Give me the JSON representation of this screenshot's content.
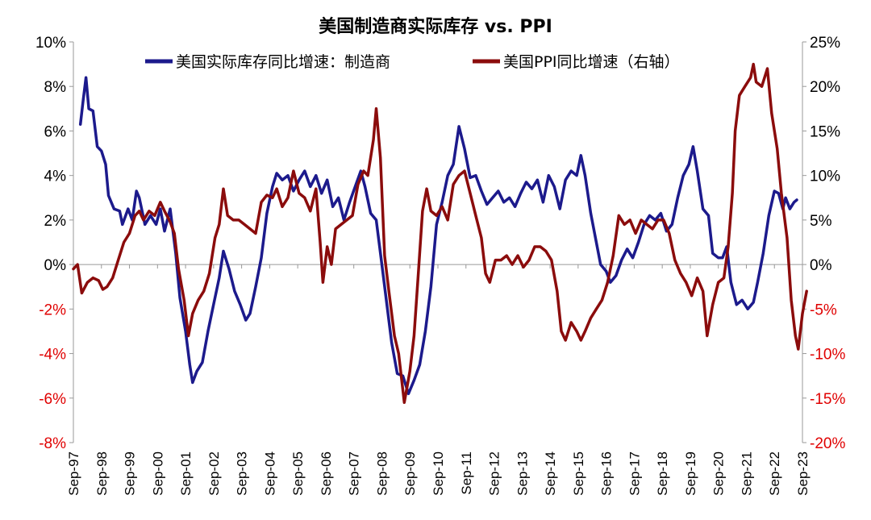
{
  "chart_data": {
    "type": "line",
    "title": "美国制造商实际库存 vs. PPI",
    "x_tick_labels": [
      "Sep-97",
      "Sep-98",
      "Sep-99",
      "Sep-00",
      "Sep-01",
      "Sep-02",
      "Sep-03",
      "Sep-04",
      "Sep-05",
      "Sep-06",
      "Sep-07",
      "Sep-08",
      "Sep-09",
      "Sep-10",
      "Sep-11",
      "Sep-12",
      "Sep-13",
      "Sep-14",
      "Sep-15",
      "Sep-16",
      "Sep-17",
      "Sep-18",
      "Sep-19",
      "Sep-20",
      "Sep-21",
      "Sep-22",
      "Sep-23"
    ],
    "left_axis": {
      "ylim": [
        -8,
        10
      ],
      "ticks": [
        10,
        8,
        6,
        4,
        2,
        0,
        -2,
        -4,
        -6,
        -8
      ],
      "tick_labels": [
        "10%",
        "8%",
        "6%",
        "4%",
        "2%",
        "0%",
        "-2%",
        "-4%",
        "-6%",
        "-8%"
      ],
      "positive_color": "#000000",
      "negative_color": "#e00000"
    },
    "right_axis": {
      "ylim": [
        -20,
        25
      ],
      "ticks": [
        25,
        20,
        15,
        10,
        5,
        0,
        -5,
        -10,
        -15,
        -20
      ],
      "tick_labels": [
        "25%",
        "20%",
        "15%",
        "10%",
        "5%",
        "0%",
        "-5%",
        "-10%",
        "-15%",
        "-20%"
      ],
      "positive_color": "#000000",
      "negative_color": "#e00000"
    },
    "legend_position": "top-center",
    "grid": false,
    "series": [
      {
        "name": "美国实际库存同比增速：制造商",
        "axis": "left",
        "color": "#1c1a8c",
        "points": [
          [
            1998.0,
            6.3
          ],
          [
            1998.1,
            7.4
          ],
          [
            1998.2,
            8.4
          ],
          [
            1998.3,
            7.0
          ],
          [
            1998.45,
            6.9
          ],
          [
            1998.6,
            5.3
          ],
          [
            1998.75,
            5.1
          ],
          [
            1998.9,
            4.5
          ],
          [
            1999.0,
            3.1
          ],
          [
            1999.2,
            2.5
          ],
          [
            1999.4,
            2.4
          ],
          [
            1999.5,
            1.8
          ],
          [
            1999.7,
            2.5
          ],
          [
            1999.85,
            2.0
          ],
          [
            2000.0,
            3.3
          ],
          [
            2000.1,
            3.0
          ],
          [
            2000.3,
            1.8
          ],
          [
            2000.5,
            2.2
          ],
          [
            2000.7,
            1.8
          ],
          [
            2000.85,
            2.5
          ],
          [
            2001.0,
            1.5
          ],
          [
            2001.2,
            2.5
          ],
          [
            2001.4,
            0.5
          ],
          [
            2001.55,
            -1.5
          ],
          [
            2001.75,
            -3.0
          ],
          [
            2001.9,
            -4.5
          ],
          [
            2002.0,
            -5.3
          ],
          [
            2002.15,
            -4.8
          ],
          [
            2002.35,
            -4.4
          ],
          [
            2002.55,
            -3.0
          ],
          [
            2002.75,
            -1.8
          ],
          [
            2002.95,
            -0.6
          ],
          [
            2003.1,
            0.6
          ],
          [
            2003.3,
            -0.2
          ],
          [
            2003.5,
            -1.2
          ],
          [
            2003.7,
            -1.8
          ],
          [
            2003.9,
            -2.5
          ],
          [
            2004.05,
            -2.2
          ],
          [
            2004.25,
            -1.0
          ],
          [
            2004.45,
            0.3
          ],
          [
            2004.65,
            2.3
          ],
          [
            2004.85,
            3.5
          ],
          [
            2005.0,
            4.1
          ],
          [
            2005.2,
            3.8
          ],
          [
            2005.4,
            4.0
          ],
          [
            2005.6,
            3.3
          ],
          [
            2005.8,
            3.8
          ],
          [
            2006.0,
            4.2
          ],
          [
            2006.2,
            3.5
          ],
          [
            2006.4,
            4.0
          ],
          [
            2006.6,
            3.2
          ],
          [
            2006.8,
            3.8
          ],
          [
            2007.0,
            2.6
          ],
          [
            2007.2,
            3.0
          ],
          [
            2007.4,
            2.0
          ],
          [
            2007.6,
            2.8
          ],
          [
            2007.8,
            3.5
          ],
          [
            2008.0,
            4.2
          ],
          [
            2008.15,
            3.5
          ],
          [
            2008.35,
            2.3
          ],
          [
            2008.55,
            2.0
          ],
          [
            2008.75,
            0.0
          ],
          [
            2008.95,
            -2.0
          ],
          [
            2009.1,
            -3.5
          ],
          [
            2009.3,
            -4.9
          ],
          [
            2009.5,
            -5.0
          ],
          [
            2009.7,
            -5.8
          ],
          [
            2009.9,
            -5.2
          ],
          [
            2010.1,
            -4.5
          ],
          [
            2010.3,
            -3.0
          ],
          [
            2010.5,
            -1.0
          ],
          [
            2010.7,
            1.8
          ],
          [
            2010.9,
            2.8
          ],
          [
            2011.1,
            4.0
          ],
          [
            2011.3,
            4.5
          ],
          [
            2011.5,
            6.2
          ],
          [
            2011.7,
            5.2
          ],
          [
            2011.9,
            3.9
          ],
          [
            2012.1,
            4.0
          ],
          [
            2012.3,
            3.3
          ],
          [
            2012.5,
            2.7
          ],
          [
            2012.7,
            3.0
          ],
          [
            2012.9,
            3.3
          ],
          [
            2013.1,
            2.8
          ],
          [
            2013.3,
            3.0
          ],
          [
            2013.5,
            2.6
          ],
          [
            2013.7,
            3.2
          ],
          [
            2013.9,
            3.7
          ],
          [
            2014.1,
            3.4
          ],
          [
            2014.3,
            3.8
          ],
          [
            2014.5,
            2.8
          ],
          [
            2014.7,
            4.0
          ],
          [
            2014.9,
            3.5
          ],
          [
            2015.1,
            2.5
          ],
          [
            2015.3,
            3.8
          ],
          [
            2015.5,
            4.2
          ],
          [
            2015.7,
            4.0
          ],
          [
            2015.85,
            4.9
          ],
          [
            2016.0,
            4.0
          ],
          [
            2016.2,
            2.3
          ],
          [
            2016.4,
            1.0
          ],
          [
            2016.55,
            0.0
          ],
          [
            2016.75,
            -0.3
          ],
          [
            2016.9,
            -0.8
          ],
          [
            2017.1,
            -0.5
          ],
          [
            2017.3,
            0.2
          ],
          [
            2017.5,
            0.7
          ],
          [
            2017.7,
            0.3
          ],
          [
            2017.9,
            1.0
          ],
          [
            2018.1,
            1.8
          ],
          [
            2018.3,
            2.2
          ],
          [
            2018.5,
            2.0
          ],
          [
            2018.7,
            2.3
          ],
          [
            2018.9,
            1.5
          ],
          [
            2019.1,
            1.8
          ],
          [
            2019.3,
            3.0
          ],
          [
            2019.5,
            4.0
          ],
          [
            2019.7,
            4.5
          ],
          [
            2019.85,
            5.3
          ],
          [
            2020.0,
            4.2
          ],
          [
            2020.2,
            2.5
          ],
          [
            2020.4,
            2.2
          ],
          [
            2020.55,
            0.5
          ],
          [
            2020.75,
            0.3
          ],
          [
            2020.9,
            0.3
          ],
          [
            2021.05,
            0.8
          ],
          [
            2021.2,
            -0.8
          ],
          [
            2021.4,
            -1.8
          ],
          [
            2021.6,
            -1.6
          ],
          [
            2021.8,
            -2.0
          ],
          [
            2022.0,
            -1.7
          ],
          [
            2022.15,
            -0.8
          ],
          [
            2022.35,
            0.5
          ],
          [
            2022.55,
            2.2
          ],
          [
            2022.75,
            3.3
          ],
          [
            2022.9,
            3.2
          ],
          [
            2023.05,
            2.5
          ],
          [
            2023.15,
            3.0
          ],
          [
            2023.3,
            2.5
          ],
          [
            2023.45,
            2.8
          ],
          [
            2023.55,
            2.9
          ]
        ]
      },
      {
        "name": "美国PPI同比增速（右轴）",
        "axis": "right",
        "color": "#8b0c0c",
        "points": [
          [
            1997.75,
            -0.5
          ],
          [
            1997.9,
            0.0
          ],
          [
            1998.05,
            -3.2
          ],
          [
            1998.25,
            -2.0
          ],
          [
            1998.45,
            -1.5
          ],
          [
            1998.65,
            -1.8
          ],
          [
            1998.8,
            -2.8
          ],
          [
            1998.95,
            -2.5
          ],
          [
            1999.15,
            -1.5
          ],
          [
            1999.35,
            0.5
          ],
          [
            1999.55,
            2.5
          ],
          [
            1999.75,
            3.5
          ],
          [
            1999.95,
            5.5
          ],
          [
            2000.1,
            6.0
          ],
          [
            2000.25,
            5.0
          ],
          [
            2000.45,
            6.0
          ],
          [
            2000.65,
            5.5
          ],
          [
            2000.85,
            7.0
          ],
          [
            2001.0,
            6.0
          ],
          [
            2001.2,
            4.8
          ],
          [
            2001.35,
            3.5
          ],
          [
            2001.5,
            -0.5
          ],
          [
            2001.7,
            -4.0
          ],
          [
            2001.85,
            -8.0
          ],
          [
            2002.0,
            -5.5
          ],
          [
            2002.2,
            -4.0
          ],
          [
            2002.4,
            -3.0
          ],
          [
            2002.6,
            -1.0
          ],
          [
            2002.8,
            3.0
          ],
          [
            2002.95,
            4.5
          ],
          [
            2003.1,
            8.5
          ],
          [
            2003.25,
            5.5
          ],
          [
            2003.45,
            5.0
          ],
          [
            2003.65,
            5.0
          ],
          [
            2003.85,
            4.5
          ],
          [
            2004.05,
            4.0
          ],
          [
            2004.25,
            3.5
          ],
          [
            2004.45,
            7.0
          ],
          [
            2004.65,
            7.8
          ],
          [
            2004.85,
            7.5
          ],
          [
            2005.0,
            8.5
          ],
          [
            2005.2,
            6.5
          ],
          [
            2005.4,
            7.5
          ],
          [
            2005.6,
            10.5
          ],
          [
            2005.8,
            8.0
          ],
          [
            2006.0,
            7.5
          ],
          [
            2006.2,
            6.0
          ],
          [
            2006.4,
            8.5
          ],
          [
            2006.55,
            2.5
          ],
          [
            2006.65,
            -2.0
          ],
          [
            2006.8,
            2.0
          ],
          [
            2006.95,
            0.0
          ],
          [
            2007.1,
            4.0
          ],
          [
            2007.3,
            4.5
          ],
          [
            2007.5,
            5.0
          ],
          [
            2007.7,
            5.5
          ],
          [
            2007.9,
            9.0
          ],
          [
            2008.1,
            10.5
          ],
          [
            2008.25,
            10.0
          ],
          [
            2008.45,
            14.0
          ],
          [
            2008.55,
            17.5
          ],
          [
            2008.7,
            12.0
          ],
          [
            2008.85,
            1.0
          ],
          [
            2009.0,
            -3.0
          ],
          [
            2009.2,
            -8.0
          ],
          [
            2009.35,
            -10.0
          ],
          [
            2009.55,
            -15.5
          ],
          [
            2009.75,
            -12.0
          ],
          [
            2009.9,
            -8.0
          ],
          [
            2010.05,
            -1.0
          ],
          [
            2010.2,
            6.0
          ],
          [
            2010.35,
            8.5
          ],
          [
            2010.5,
            6.0
          ],
          [
            2010.7,
            5.5
          ],
          [
            2010.9,
            6.5
          ],
          [
            2011.1,
            5.0
          ],
          [
            2011.3,
            9.0
          ],
          [
            2011.5,
            10.0
          ],
          [
            2011.7,
            10.5
          ],
          [
            2011.9,
            8.0
          ],
          [
            2012.1,
            5.5
          ],
          [
            2012.3,
            3.0
          ],
          [
            2012.45,
            -1.0
          ],
          [
            2012.6,
            -2.0
          ],
          [
            2012.8,
            0.5
          ],
          [
            2013.0,
            0.5
          ],
          [
            2013.2,
            1.0
          ],
          [
            2013.4,
            0.0
          ],
          [
            2013.6,
            1.0
          ],
          [
            2013.8,
            -0.3
          ],
          [
            2014.0,
            0.5
          ],
          [
            2014.2,
            2.0
          ],
          [
            2014.4,
            2.0
          ],
          [
            2014.6,
            1.5
          ],
          [
            2014.8,
            0.5
          ],
          [
            2015.0,
            -3.0
          ],
          [
            2015.15,
            -7.5
          ],
          [
            2015.3,
            -8.5
          ],
          [
            2015.5,
            -6.5
          ],
          [
            2015.7,
            -7.5
          ],
          [
            2015.85,
            -8.5
          ],
          [
            2016.0,
            -7.5
          ],
          [
            2016.2,
            -6.0
          ],
          [
            2016.4,
            -5.0
          ],
          [
            2016.6,
            -4.0
          ],
          [
            2016.8,
            -2.0
          ],
          [
            2017.0,
            1.0
          ],
          [
            2017.2,
            5.5
          ],
          [
            2017.4,
            4.5
          ],
          [
            2017.6,
            5.0
          ],
          [
            2017.8,
            3.5
          ],
          [
            2018.0,
            5.0
          ],
          [
            2018.2,
            4.5
          ],
          [
            2018.4,
            4.0
          ],
          [
            2018.6,
            5.0
          ],
          [
            2018.8,
            5.0
          ],
          [
            2019.0,
            3.5
          ],
          [
            2019.2,
            0.5
          ],
          [
            2019.4,
            -1.0
          ],
          [
            2019.6,
            -2.0
          ],
          [
            2019.8,
            -3.5
          ],
          [
            2020.0,
            -1.5
          ],
          [
            2020.2,
            -3.0
          ],
          [
            2020.35,
            -8.0
          ],
          [
            2020.55,
            -4.5
          ],
          [
            2020.75,
            -2.0
          ],
          [
            2020.95,
            -1.5
          ],
          [
            2021.1,
            2.0
          ],
          [
            2021.25,
            8.0
          ],
          [
            2021.35,
            15.0
          ],
          [
            2021.5,
            19.0
          ],
          [
            2021.7,
            20.0
          ],
          [
            2021.9,
            21.0
          ],
          [
            2022.0,
            22.5
          ],
          [
            2022.1,
            20.5
          ],
          [
            2022.3,
            20.0
          ],
          [
            2022.5,
            22.0
          ],
          [
            2022.65,
            17.0
          ],
          [
            2022.85,
            13.0
          ],
          [
            2023.0,
            8.0
          ],
          [
            2023.2,
            3.0
          ],
          [
            2023.35,
            -4.0
          ],
          [
            2023.5,
            -8.0
          ],
          [
            2023.6,
            -9.5
          ],
          [
            2023.75,
            -5.5
          ],
          [
            2023.9,
            -3.0
          ]
        ]
      }
    ]
  }
}
